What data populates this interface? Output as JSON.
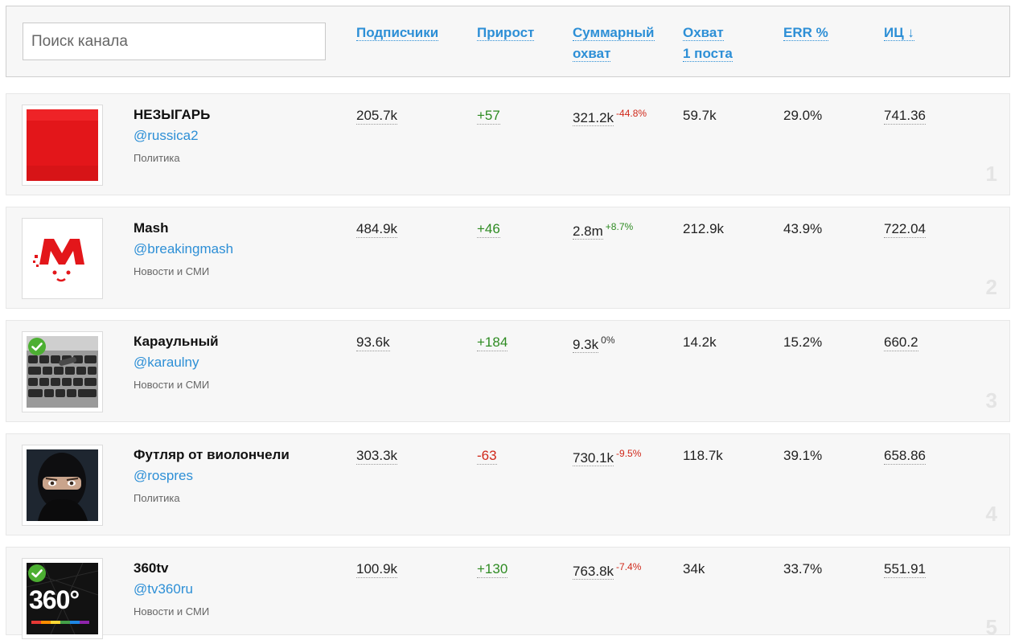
{
  "search": {
    "placeholder": "Поиск канала"
  },
  "columns": {
    "subs": "Подписчики",
    "growth": "Прирост",
    "reach_1": "Суммарный",
    "reach_2": "охват",
    "post_1": "Охват",
    "post_2": "1 поста",
    "err": "ERR %",
    "ic": "ИЦ ↓"
  },
  "rows": [
    {
      "name": "НЕЗЫГАРЬ",
      "handle": "@russica2",
      "category": "Политика",
      "subs": "205.7k",
      "growth": "+57",
      "growth_sign": "pos",
      "reach": "321.2k",
      "reach_delta": "-44.8%",
      "reach_delta_sign": "neg",
      "post_reach": "59.7k",
      "err": "29.0%",
      "ic": "741.36",
      "rank": "1",
      "avatar": "red-square-avatar",
      "verified": false
    },
    {
      "name": "Mash",
      "handle": "@breakingmash",
      "category": "Новости и СМИ",
      "subs": "484.9k",
      "growth": "+46",
      "growth_sign": "pos",
      "reach": "2.8m",
      "reach_delta": "+8.7%",
      "reach_delta_sign": "pos",
      "post_reach": "212.9k",
      "err": "43.9%",
      "ic": "722.04",
      "rank": "2",
      "avatar": "mash-logo-avatar",
      "verified": false
    },
    {
      "name": "Караульный",
      "handle": "@karaulny",
      "category": "Новости и СМИ",
      "subs": "93.6k",
      "growth": "+184",
      "growth_sign": "pos",
      "reach": "9.3k",
      "reach_delta": "0%",
      "reach_delta_sign": "zero",
      "post_reach": "14.2k",
      "err": "15.2%",
      "ic": "660.2",
      "rank": "3",
      "avatar": "keyboard-avatar",
      "verified": true
    },
    {
      "name": "Футляр от виолончели",
      "handle": "@rospres",
      "category": "Политика",
      "subs": "303.3k",
      "growth": "-63",
      "growth_sign": "neg",
      "reach": "730.1k",
      "reach_delta": "-9.5%",
      "reach_delta_sign": "neg",
      "post_reach": "118.7k",
      "err": "39.1%",
      "ic": "658.86",
      "rank": "4",
      "avatar": "masked-man-avatar",
      "verified": false
    },
    {
      "name": "360tv",
      "handle": "@tv360ru",
      "category": "Новости и СМИ",
      "subs": "100.9k",
      "growth": "+130",
      "growth_sign": "pos",
      "reach": "763.8k",
      "reach_delta": "-7.4%",
      "reach_delta_sign": "neg",
      "post_reach": "34k",
      "err": "33.7%",
      "ic": "551.91",
      "rank": "5",
      "avatar": "tv360-logo-avatar",
      "verified": true,
      "avatar_text": "360°"
    }
  ]
}
